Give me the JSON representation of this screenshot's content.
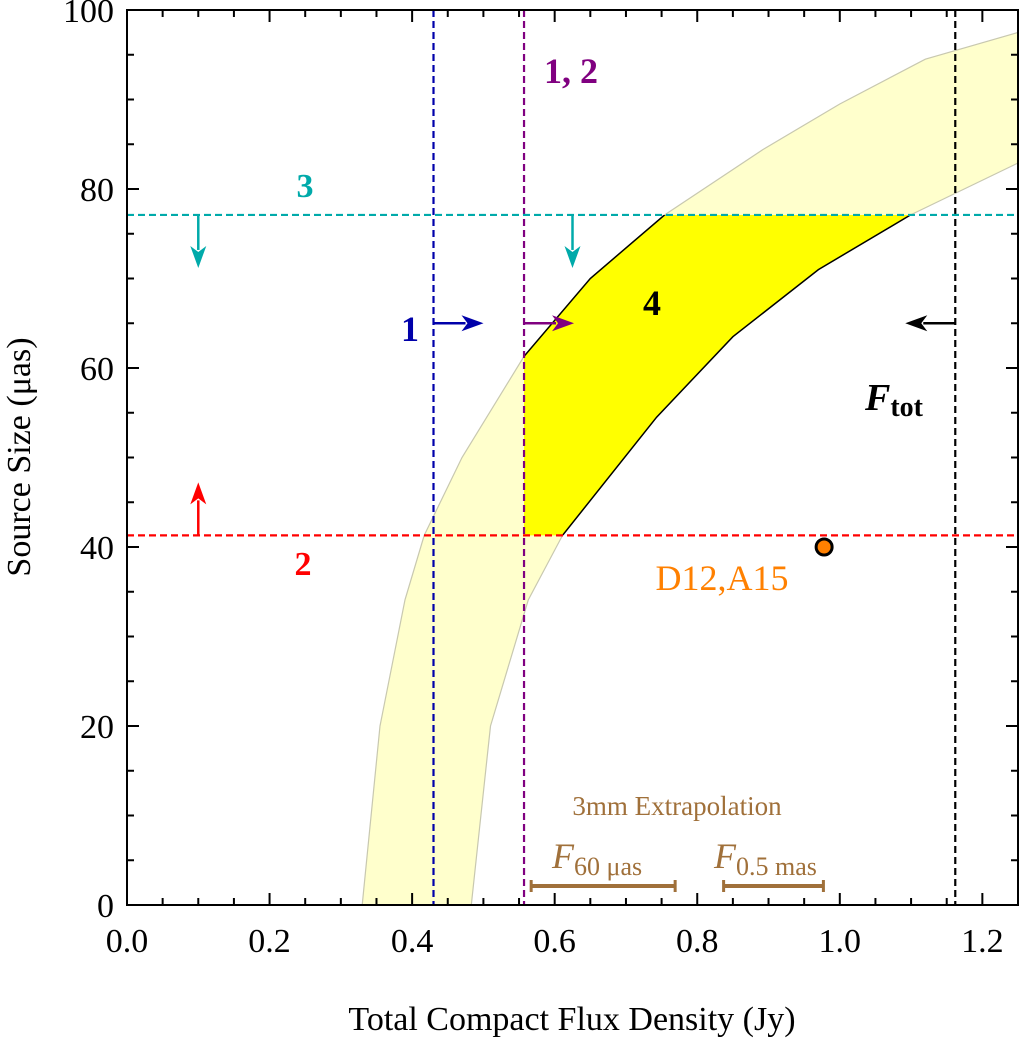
{
  "chart_data": {
    "type": "line",
    "title": "",
    "xlabel": "Total Compact Flux Density (Jy)",
    "ylabel": "Source Size (μas)",
    "xlim": [
      0,
      1.25
    ],
    "ylim": [
      0,
      100
    ],
    "xticks": [
      "0.0",
      "0.2",
      "0.4",
      "0.6",
      "0.8",
      "1.0",
      "1.2"
    ],
    "xtick_values": [
      0,
      0.2,
      0.4,
      0.6,
      0.8,
      1.0,
      1.2
    ],
    "yticks": [
      "0",
      "20",
      "40",
      "60",
      "80",
      "100"
    ],
    "ytick_values": [
      0,
      20,
      40,
      60,
      80,
      100
    ],
    "grid": false,
    "band": {
      "fill": "#ffffcc",
      "left_edge": [
        [
          0.33,
          0
        ],
        [
          0.355,
          20
        ],
        [
          0.39,
          34.1
        ],
        [
          0.417,
          41.3
        ],
        [
          0.47,
          50
        ],
        [
          0.557,
          61.3
        ],
        [
          0.65,
          70
        ],
        [
          0.754,
          77.1
        ],
        [
          0.892,
          84.4
        ],
        [
          1.0,
          89.5
        ],
        [
          1.12,
          94.5
        ],
        [
          1.25,
          97.5
        ]
      ],
      "right_edge": [
        [
          0.483,
          0
        ],
        [
          0.51,
          20
        ],
        [
          0.563,
          34.1
        ],
        [
          0.611,
          41.3
        ],
        [
          0.743,
          54.5
        ],
        [
          0.85,
          63.5
        ],
        [
          0.97,
          71
        ],
        [
          1.099,
          77.1
        ],
        [
          1.25,
          82.9
        ]
      ]
    },
    "allowed_region": {
      "label": "4",
      "fill": "#ffff00",
      "x_min": 0.557,
      "y_min": 41.3,
      "y_max": 77.1
    },
    "constraints": [
      {
        "id": "1",
        "label": "1",
        "orientation": "vertical",
        "value": 0.43,
        "color": "#0000aa",
        "arrow": {
          "at": 65,
          "dir": "right"
        }
      },
      {
        "id": "1,2",
        "label": "1, 2",
        "orientation": "vertical",
        "value": 0.557,
        "color": "#800080",
        "arrow": {
          "at": 65,
          "dir": "right"
        }
      },
      {
        "id": "Ftot",
        "label": "F",
        "label_sub": "tot",
        "orientation": "vertical",
        "value": 1.162,
        "color": "#000000",
        "arrow": {
          "at": 65,
          "dir": "left"
        }
      },
      {
        "id": "3",
        "label": "3",
        "orientation": "horizontal",
        "value": 77.1,
        "color": "#00aaaa",
        "arrows": [
          {
            "at": 0.1,
            "dir": "down"
          },
          {
            "at": 0.625,
            "dir": "down"
          }
        ]
      },
      {
        "id": "2",
        "label": "2",
        "orientation": "horizontal",
        "value": 41.3,
        "color": "#ff0000",
        "arrows": [
          {
            "at": 0.1,
            "dir": "up"
          }
        ]
      }
    ],
    "point": {
      "label": "D12,A15",
      "x": 0.978,
      "y": 40,
      "color": "#ff8000"
    },
    "extrapolation": {
      "title": "3mm Extrapolation",
      "color": "#a0703a",
      "ranges": [
        {
          "label": "F",
          "sub": "60 μas",
          "x": [
            0.567,
            0.769
          ]
        },
        {
          "label": "F",
          "sub": "0.5 mas",
          "x": [
            0.837,
            0.977
          ]
        }
      ]
    }
  }
}
